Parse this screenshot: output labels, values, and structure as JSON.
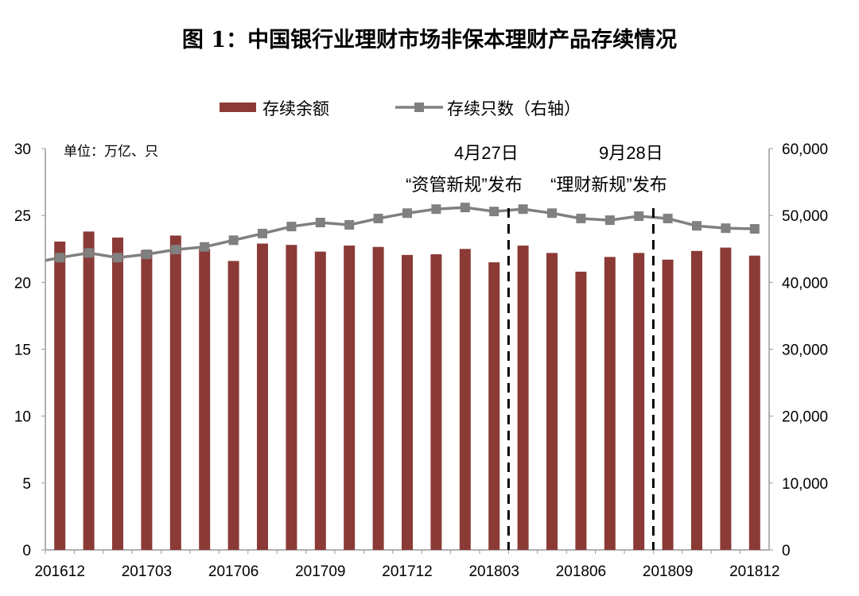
{
  "chart_data": {
    "type": "bar+line",
    "title": "图 1：中国银行业理财市场非保本理财产品存续情况",
    "unit_note": "单位：万亿、只",
    "categories": [
      "201612",
      "201701",
      "201702",
      "201703",
      "201704",
      "201705",
      "201706",
      "201707",
      "201708",
      "201709",
      "201710",
      "201711",
      "201712",
      "201801",
      "201802",
      "201803",
      "201804",
      "201805",
      "201806",
      "201807",
      "201808",
      "201809",
      "201810",
      "201811",
      "201812"
    ],
    "x_tick_labels": [
      "201612",
      "201703",
      "201706",
      "201709",
      "201712",
      "201803",
      "201806",
      "201809",
      "201812"
    ],
    "series": [
      {
        "name": "存续余额",
        "type": "bar",
        "axis": "left",
        "color": "#8B3A36",
        "values": [
          23.05,
          23.8,
          23.35,
          22.4,
          23.5,
          22.5,
          21.6,
          22.9,
          22.8,
          22.3,
          22.75,
          22.65,
          22.05,
          22.1,
          22.5,
          21.5,
          22.75,
          22.2,
          20.8,
          21.9,
          22.2,
          21.7,
          22.35,
          22.6,
          22.0
        ]
      },
      {
        "name": "存续只数（右轴）",
        "type": "line",
        "axis": "right",
        "color": "#808080",
        "values": [
          43700,
          44400,
          43700,
          44200,
          44900,
          45300,
          46300,
          47300,
          48350,
          48950,
          48600,
          49550,
          50350,
          50950,
          51200,
          50600,
          50950,
          50350,
          49550,
          49300,
          49900,
          49550,
          48450,
          48100,
          48000
        ]
      }
    ],
    "left_axis": {
      "min": 0,
      "max": 30,
      "ticks": [
        "0",
        "5",
        "10",
        "15",
        "20",
        "25",
        "30"
      ]
    },
    "right_axis": {
      "min": 0,
      "max": 60000,
      "ticks": [
        "0",
        "10,000",
        "20,000",
        "30,000",
        "40,000",
        "50,000",
        "60,000"
      ]
    },
    "annotations": [
      {
        "after_category": "201803",
        "line1": "4月27日",
        "line2": "“资管新规”发布"
      },
      {
        "after_category": "201808",
        "line1": "9月28日",
        "line2": "“理财新规”发布"
      }
    ],
    "legend_position": "top-center",
    "grid": false
  }
}
